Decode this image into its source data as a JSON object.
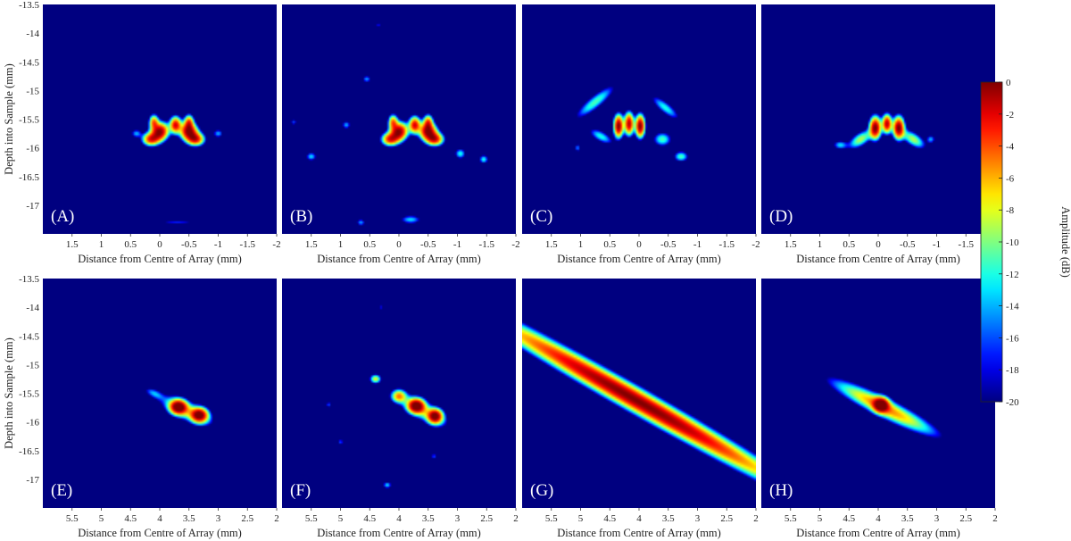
{
  "chart_data": {
    "type": "heatmap",
    "shared": {
      "xlabel": "Distance from Centre of Array (mm)",
      "ylabel": "Depth into Sample (mm)",
      "ylim": [
        -17.5,
        -13.5
      ],
      "yticks": [
        -13.5,
        -14,
        -14.5,
        -15,
        -15.5,
        -16,
        -16.5,
        -17
      ],
      "colorbar": {
        "label": "Amplitude (dB)",
        "range": [
          -20,
          0
        ],
        "ticks": [
          0,
          -2,
          -4,
          -6,
          -8,
          -10,
          -12,
          -14,
          -16,
          -18,
          -20
        ],
        "colormap": "jet"
      }
    },
    "panels": [
      {
        "label": "(A)",
        "xlim": [
          2,
          -2
        ],
        "xticks": [
          1.5,
          1,
          0.5,
          0,
          -0.5,
          -1,
          -1.5,
          -2
        ],
        "blobs": [
          {
            "x": 0.0,
            "y": -15.72,
            "sx": 0.1,
            "sy": 0.09,
            "rot": -60,
            "amp": 0.0
          },
          {
            "x": -0.5,
            "y": -15.72,
            "sx": 0.1,
            "sy": 0.09,
            "rot": 60,
            "amp": 0.0
          },
          {
            "x": 0.15,
            "y": -15.85,
            "sx": 0.09,
            "sy": 0.07,
            "rot": 0,
            "amp": -3
          },
          {
            "x": -0.62,
            "y": -15.85,
            "sx": 0.09,
            "sy": 0.07,
            "rot": 0,
            "amp": -3
          },
          {
            "x": -0.27,
            "y": -15.6,
            "sx": 0.06,
            "sy": 0.09,
            "rot": 0,
            "amp": -2
          },
          {
            "x": 0.1,
            "y": -15.55,
            "sx": 0.05,
            "sy": 0.08,
            "rot": 0,
            "amp": -5
          },
          {
            "x": -0.5,
            "y": -15.55,
            "sx": 0.05,
            "sy": 0.08,
            "rot": 0,
            "amp": -5
          },
          {
            "x": 0.4,
            "y": -15.75,
            "sx": 0.06,
            "sy": 0.05,
            "rot": 0,
            "amp": -14
          },
          {
            "x": -1.0,
            "y": -15.75,
            "sx": 0.06,
            "sy": 0.05,
            "rot": 0,
            "amp": -14
          },
          {
            "x": -0.3,
            "y": -17.3,
            "sx": 0.25,
            "sy": 0.03,
            "rot": 0,
            "amp": -17
          }
        ]
      },
      {
        "label": "(B)",
        "xlim": [
          2,
          -2
        ],
        "xticks": [
          1.5,
          1,
          0.5,
          0,
          -0.5,
          -1,
          -1.5,
          -2
        ],
        "blobs": [
          {
            "x": 0.0,
            "y": -15.72,
            "sx": 0.1,
            "sy": 0.09,
            "rot": -60,
            "amp": 0.0
          },
          {
            "x": -0.5,
            "y": -15.72,
            "sx": 0.1,
            "sy": 0.09,
            "rot": 60,
            "amp": 0.0
          },
          {
            "x": 0.15,
            "y": -15.85,
            "sx": 0.09,
            "sy": 0.07,
            "rot": 0,
            "amp": -3
          },
          {
            "x": -0.62,
            "y": -15.85,
            "sx": 0.09,
            "sy": 0.07,
            "rot": 0,
            "amp": -3
          },
          {
            "x": -0.27,
            "y": -15.6,
            "sx": 0.06,
            "sy": 0.09,
            "rot": 0,
            "amp": -2
          },
          {
            "x": 0.1,
            "y": -15.55,
            "sx": 0.05,
            "sy": 0.08,
            "rot": 0,
            "amp": -5
          },
          {
            "x": -0.5,
            "y": -15.55,
            "sx": 0.05,
            "sy": 0.08,
            "rot": 0,
            "amp": -5
          },
          {
            "x": 1.5,
            "y": -16.15,
            "sx": 0.06,
            "sy": 0.05,
            "rot": 0,
            "amp": -13
          },
          {
            "x": 0.55,
            "y": -14.8,
            "sx": 0.05,
            "sy": 0.04,
            "rot": 0,
            "amp": -14
          },
          {
            "x": 0.9,
            "y": -15.6,
            "sx": 0.05,
            "sy": 0.05,
            "rot": 0,
            "amp": -14
          },
          {
            "x": -1.05,
            "y": -16.1,
            "sx": 0.06,
            "sy": 0.06,
            "rot": 0,
            "amp": -12
          },
          {
            "x": -1.45,
            "y": -16.2,
            "sx": 0.05,
            "sy": 0.05,
            "rot": 0,
            "amp": -12
          },
          {
            "x": -0.2,
            "y": -17.25,
            "sx": 0.12,
            "sy": 0.05,
            "rot": 0,
            "amp": -13
          },
          {
            "x": 0.65,
            "y": -17.3,
            "sx": 0.05,
            "sy": 0.04,
            "rot": 0,
            "amp": -14
          },
          {
            "x": 1.8,
            "y": -15.55,
            "sx": 0.04,
            "sy": 0.04,
            "rot": 0,
            "amp": -16
          },
          {
            "x": 0.35,
            "y": -13.85,
            "sx": 0.04,
            "sy": 0.03,
            "rot": 0,
            "amp": -17
          }
        ]
      },
      {
        "label": "(C)",
        "xlim": [
          2,
          -2
        ],
        "xticks": [
          1.5,
          1,
          0.5,
          0,
          -0.5,
          -1,
          -1.5,
          -2
        ],
        "blobs": [
          {
            "x": 0.35,
            "y": -15.62,
            "sx": 0.05,
            "sy": 0.12,
            "rot": 0,
            "amp": 0.0
          },
          {
            "x": 0.17,
            "y": -15.58,
            "sx": 0.05,
            "sy": 0.12,
            "rot": 0,
            "amp": -1
          },
          {
            "x": -0.02,
            "y": -15.62,
            "sx": 0.05,
            "sy": 0.12,
            "rot": 0,
            "amp": 0.0
          },
          {
            "x": 0.75,
            "y": -15.2,
            "sx": 0.28,
            "sy": 0.07,
            "rot": -40,
            "amp": -11
          },
          {
            "x": -0.45,
            "y": -15.3,
            "sx": 0.2,
            "sy": 0.06,
            "rot": 40,
            "amp": -12
          },
          {
            "x": 0.65,
            "y": -15.8,
            "sx": 0.15,
            "sy": 0.06,
            "rot": 30,
            "amp": -12
          },
          {
            "x": -0.4,
            "y": -15.85,
            "sx": 0.1,
            "sy": 0.08,
            "rot": 0,
            "amp": -11
          },
          {
            "x": -0.72,
            "y": -16.15,
            "sx": 0.08,
            "sy": 0.06,
            "rot": 0,
            "amp": -11
          },
          {
            "x": 1.05,
            "y": -16.0,
            "sx": 0.04,
            "sy": 0.05,
            "rot": 0,
            "amp": -15
          }
        ]
      },
      {
        "label": "(D)",
        "xlim": [
          2,
          -2
        ],
        "xticks": [
          1.5,
          1,
          0.5,
          0,
          -0.5,
          -1,
          -1.5,
          -2
        ],
        "blobs": [
          {
            "x": 0.05,
            "y": -15.65,
            "sx": 0.06,
            "sy": 0.12,
            "rot": 0,
            "amp": 0.0
          },
          {
            "x": -0.35,
            "y": -15.65,
            "sx": 0.06,
            "sy": 0.12,
            "rot": 0,
            "amp": 0.0
          },
          {
            "x": -0.15,
            "y": -15.58,
            "sx": 0.05,
            "sy": 0.1,
            "rot": 0,
            "amp": -1
          },
          {
            "x": 0.3,
            "y": -15.85,
            "sx": 0.15,
            "sy": 0.07,
            "rot": -35,
            "amp": -9
          },
          {
            "x": -0.6,
            "y": -15.85,
            "sx": 0.15,
            "sy": 0.07,
            "rot": 35,
            "amp": -9
          },
          {
            "x": 0.65,
            "y": -15.95,
            "sx": 0.08,
            "sy": 0.05,
            "rot": 0,
            "amp": -13
          },
          {
            "x": -0.9,
            "y": -15.85,
            "sx": 0.05,
            "sy": 0.05,
            "rot": 0,
            "amp": -14
          }
        ]
      },
      {
        "label": "(E)",
        "xlim": [
          6,
          2
        ],
        "xticks": [
          5.5,
          5,
          4.5,
          4,
          3.5,
          3,
          2.5,
          2
        ],
        "blobs": [
          {
            "x": 3.68,
            "y": -15.74,
            "sx": 0.09,
            "sy": 0.08,
            "rot": 0,
            "amp": 0.0
          },
          {
            "x": 3.32,
            "y": -15.88,
            "sx": 0.09,
            "sy": 0.08,
            "rot": 0,
            "amp": -0.5
          },
          {
            "x": 3.55,
            "y": -15.8,
            "sx": 0.3,
            "sy": 0.1,
            "rot": 25,
            "amp": -9
          },
          {
            "x": 4.1,
            "y": -15.5,
            "sx": 0.12,
            "sy": 0.05,
            "rot": 25,
            "amp": -15
          }
        ]
      },
      {
        "label": "(F)",
        "xlim": [
          6,
          2
        ],
        "xticks": [
          5.5,
          5,
          4.5,
          4,
          3.5,
          3,
          2.5,
          2
        ],
        "blobs": [
          {
            "x": 3.7,
            "y": -15.72,
            "sx": 0.09,
            "sy": 0.08,
            "rot": 0,
            "amp": 0.0
          },
          {
            "x": 3.38,
            "y": -15.9,
            "sx": 0.08,
            "sy": 0.08,
            "rot": 0,
            "amp": -0.5
          },
          {
            "x": 4.0,
            "y": -15.55,
            "sx": 0.08,
            "sy": 0.07,
            "rot": 0,
            "amp": -6
          },
          {
            "x": 4.4,
            "y": -15.25,
            "sx": 0.06,
            "sy": 0.05,
            "rot": 0,
            "amp": -8
          },
          {
            "x": 3.6,
            "y": -15.8,
            "sx": 0.3,
            "sy": 0.1,
            "rot": 30,
            "amp": -10
          },
          {
            "x": 4.2,
            "y": -17.1,
            "sx": 0.05,
            "sy": 0.04,
            "rot": 0,
            "amp": -13
          },
          {
            "x": 5.2,
            "y": -15.7,
            "sx": 0.04,
            "sy": 0.04,
            "rot": 0,
            "amp": -16
          },
          {
            "x": 5.0,
            "y": -16.35,
            "sx": 0.04,
            "sy": 0.04,
            "rot": 0,
            "amp": -16
          },
          {
            "x": 3.4,
            "y": -16.6,
            "sx": 0.04,
            "sy": 0.04,
            "rot": 0,
            "amp": -16
          },
          {
            "x": 4.3,
            "y": -14.0,
            "sx": 0.03,
            "sy": 0.03,
            "rot": 0,
            "amp": -17
          }
        ]
      },
      {
        "label": "(G)",
        "xlim": [
          6,
          2
        ],
        "xticks": [
          5.5,
          5,
          4.5,
          4,
          3.5,
          3,
          2.5,
          2
        ],
        "blobs": [
          {
            "x": 4.05,
            "y": -15.62,
            "sx": 1.9,
            "sy": 0.12,
            "rot": 30,
            "amp": 0.0
          }
        ]
      },
      {
        "label": "(H)",
        "xlim": [
          6,
          2
        ],
        "xticks": [
          5.5,
          5,
          4.5,
          4,
          3.5,
          3,
          2.5,
          2
        ],
        "blobs": [
          {
            "x": 3.95,
            "y": -15.7,
            "sx": 0.08,
            "sy": 0.08,
            "rot": 0,
            "amp": 0.0
          },
          {
            "x": 3.9,
            "y": -15.75,
            "sx": 0.6,
            "sy": 0.1,
            "rot": 27,
            "amp": -5
          }
        ]
      }
    ]
  }
}
